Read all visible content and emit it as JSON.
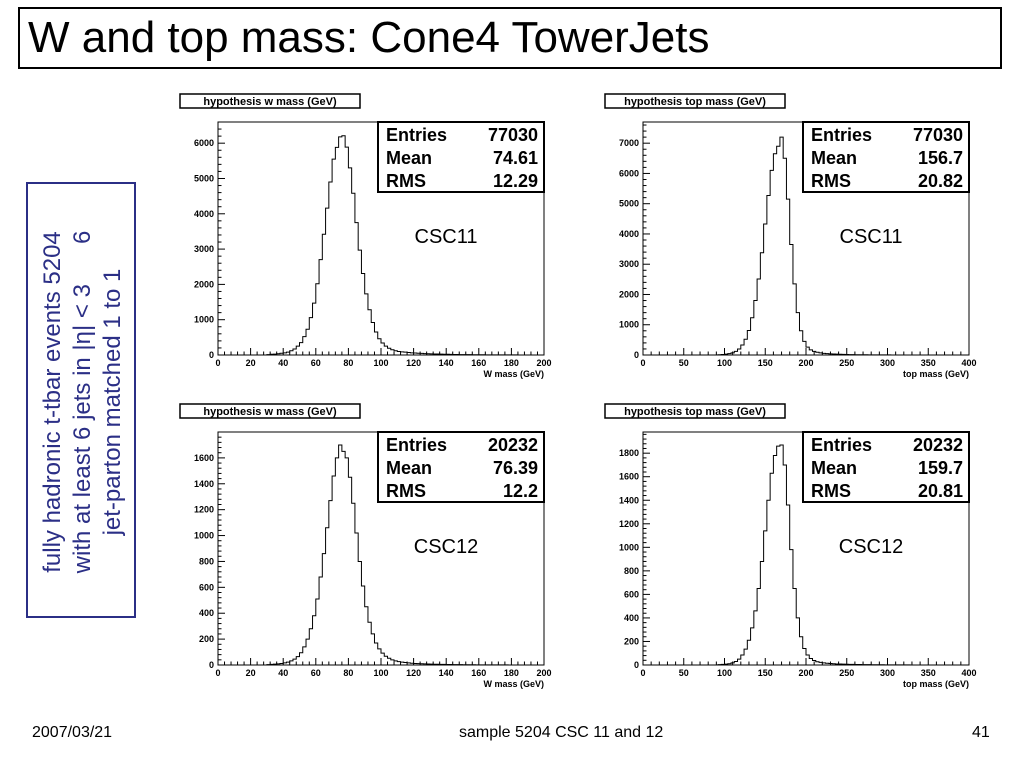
{
  "title": "W and top mass: Cone4 TowerJets",
  "side_note": {
    "lines": [
      "fully hadronic t-tbar events 5204",
      "with at least 6 jets in |η| < 3",
      "jet-parton matched 1 to 1"
    ],
    "annotation": "6",
    "color": "#2b2f86"
  },
  "footer": {
    "date": "2007/03/21",
    "center": "sample 5204 CSC 11 and 12",
    "page": "41"
  },
  "chart_data": [
    {
      "type": "histogram",
      "title": "hypothesis w mass (GeV)",
      "xlabel": "W mass (GeV)",
      "xlim": [
        0,
        200
      ],
      "ylim": [
        0,
        6600
      ],
      "xticks": [
        0,
        20,
        40,
        60,
        80,
        100,
        120,
        140,
        160,
        180,
        200
      ],
      "yticks": [
        0,
        1000,
        2000,
        3000,
        4000,
        5000,
        6000
      ],
      "stats": {
        "Entries": "77030",
        "Mean": "74.61",
        "RMS": "12.29"
      },
      "annotation": "CSC11",
      "bins": {
        "start": 0,
        "width": 2,
        "values": [
          0,
          0,
          0,
          0,
          0,
          0,
          0,
          0,
          0,
          0,
          0,
          0,
          0,
          0,
          0,
          12,
          20,
          25,
          35,
          50,
          60,
          80,
          120,
          170,
          250,
          350,
          520,
          730,
          1060,
          1470,
          2020,
          2700,
          3420,
          4160,
          4900,
          5550,
          5880,
          6180,
          6210,
          5890,
          5300,
          4580,
          3750,
          2970,
          2310,
          1730,
          1280,
          920,
          650,
          460,
          340,
          250,
          190,
          150,
          120,
          100,
          90,
          80,
          70,
          60,
          55,
          50,
          45,
          40,
          35,
          32,
          30,
          28,
          25,
          22,
          20,
          18,
          16,
          14,
          12,
          10,
          10,
          9,
          8,
          7,
          6,
          6,
          5,
          5,
          4,
          4,
          3,
          3,
          2,
          2,
          2,
          2,
          1,
          1,
          1,
          1,
          1,
          1,
          1,
          1
        ]
      }
    },
    {
      "type": "histogram",
      "title": "hypothesis top mass (GeV)",
      "xlabel": "top mass (GeV)",
      "xlim": [
        0,
        400
      ],
      "ylim": [
        0,
        7700
      ],
      "xticks": [
        0,
        50,
        100,
        150,
        200,
        250,
        300,
        350,
        400
      ],
      "yticks": [
        0,
        1000,
        2000,
        3000,
        4000,
        5000,
        6000,
        7000
      ],
      "stats": {
        "Entries": "77030",
        "Mean": "156.7",
        "RMS": "20.82"
      },
      "annotation": "CSC11",
      "bins": {
        "start": 0,
        "width": 4,
        "values": [
          0,
          0,
          0,
          0,
          0,
          0,
          0,
          0,
          0,
          0,
          0,
          0,
          0,
          0,
          0,
          0,
          0,
          0,
          0,
          0,
          0,
          0,
          0,
          10,
          17,
          27,
          44,
          72,
          120,
          200,
          330,
          520,
          810,
          1230,
          1800,
          2510,
          3380,
          4330,
          5270,
          6100,
          6650,
          6900,
          7200,
          6500,
          5150,
          3650,
          2350,
          1400,
          800,
          450,
          260,
          170,
          120,
          90,
          70,
          55,
          45,
          38,
          32,
          27,
          23,
          20,
          17,
          14,
          12,
          10,
          9,
          8,
          7,
          6,
          5,
          5,
          4,
          4,
          3,
          3,
          2,
          2,
          2,
          2,
          1,
          1,
          1,
          1,
          1,
          1,
          1,
          1,
          0,
          0,
          0,
          0,
          0,
          0,
          0,
          0,
          0,
          0,
          0,
          0
        ]
      }
    },
    {
      "type": "histogram",
      "title": "hypothesis w mass (GeV)",
      "xlabel": "W mass (GeV)",
      "xlim": [
        0,
        200
      ],
      "ylim": [
        0,
        1800
      ],
      "xticks": [
        0,
        20,
        40,
        60,
        80,
        100,
        120,
        140,
        160,
        180,
        200
      ],
      "yticks": [
        0,
        200,
        400,
        600,
        800,
        1000,
        1200,
        1400,
        1600
      ],
      "stats": {
        "Entries": "20232",
        "Mean": "76.39",
        "RMS": "12.2"
      },
      "annotation": "CSC12",
      "bins": {
        "start": 0,
        "width": 2,
        "values": [
          0,
          0,
          0,
          0,
          0,
          0,
          0,
          0,
          0,
          0,
          0,
          0,
          0,
          0,
          0,
          3,
          5,
          7,
          9,
          12,
          16,
          22,
          32,
          45,
          65,
          95,
          140,
          200,
          280,
          380,
          510,
          680,
          860,
          1060,
          1270,
          1460,
          1600,
          1700,
          1650,
          1600,
          1450,
          1250,
          1020,
          800,
          610,
          450,
          330,
          240,
          170,
          125,
          92,
          68,
          52,
          40,
          32,
          26,
          22,
          19,
          16,
          14,
          12,
          11,
          10,
          9,
          8,
          7,
          6,
          6,
          5,
          5,
          4,
          4,
          3,
          3,
          3,
          2,
          2,
          2,
          2,
          1,
          1,
          1,
          1,
          1,
          1,
          1,
          1,
          1,
          1,
          0,
          0,
          0,
          0,
          0,
          0,
          0,
          0,
          0,
          0,
          0
        ]
      }
    },
    {
      "type": "histogram",
      "title": "hypothesis top mass (GeV)",
      "xlabel": "top mass (GeV)",
      "xlim": [
        0,
        400
      ],
      "ylim": [
        0,
        1980
      ],
      "xticks": [
        0,
        50,
        100,
        150,
        200,
        250,
        300,
        350,
        400
      ],
      "yticks": [
        0,
        200,
        400,
        600,
        800,
        1000,
        1200,
        1400,
        1600,
        1800
      ],
      "stats": {
        "Entries": "20232",
        "Mean": "159.7",
        "RMS": "20.81"
      },
      "annotation": "CSC12",
      "bins": {
        "start": 0,
        "width": 4,
        "values": [
          0,
          0,
          0,
          0,
          0,
          0,
          0,
          0,
          0,
          0,
          0,
          0,
          0,
          0,
          0,
          0,
          0,
          0,
          0,
          0,
          0,
          0,
          0,
          3,
          5,
          7,
          11,
          18,
          30,
          50,
          85,
          135,
          210,
          315,
          460,
          650,
          880,
          1140,
          1400,
          1630,
          1780,
          1860,
          1870,
          1700,
          1360,
          980,
          650,
          400,
          240,
          140,
          85,
          55,
          38,
          28,
          22,
          18,
          15,
          13,
          11,
          9,
          8,
          7,
          6,
          5,
          5,
          4,
          4,
          3,
          3,
          3,
          2,
          2,
          2,
          2,
          1,
          1,
          1,
          1,
          1,
          1,
          1,
          1,
          0,
          0,
          0,
          0,
          0,
          0,
          0,
          0,
          0,
          0,
          0,
          0,
          0,
          0,
          0,
          0,
          0,
          0
        ]
      }
    }
  ]
}
